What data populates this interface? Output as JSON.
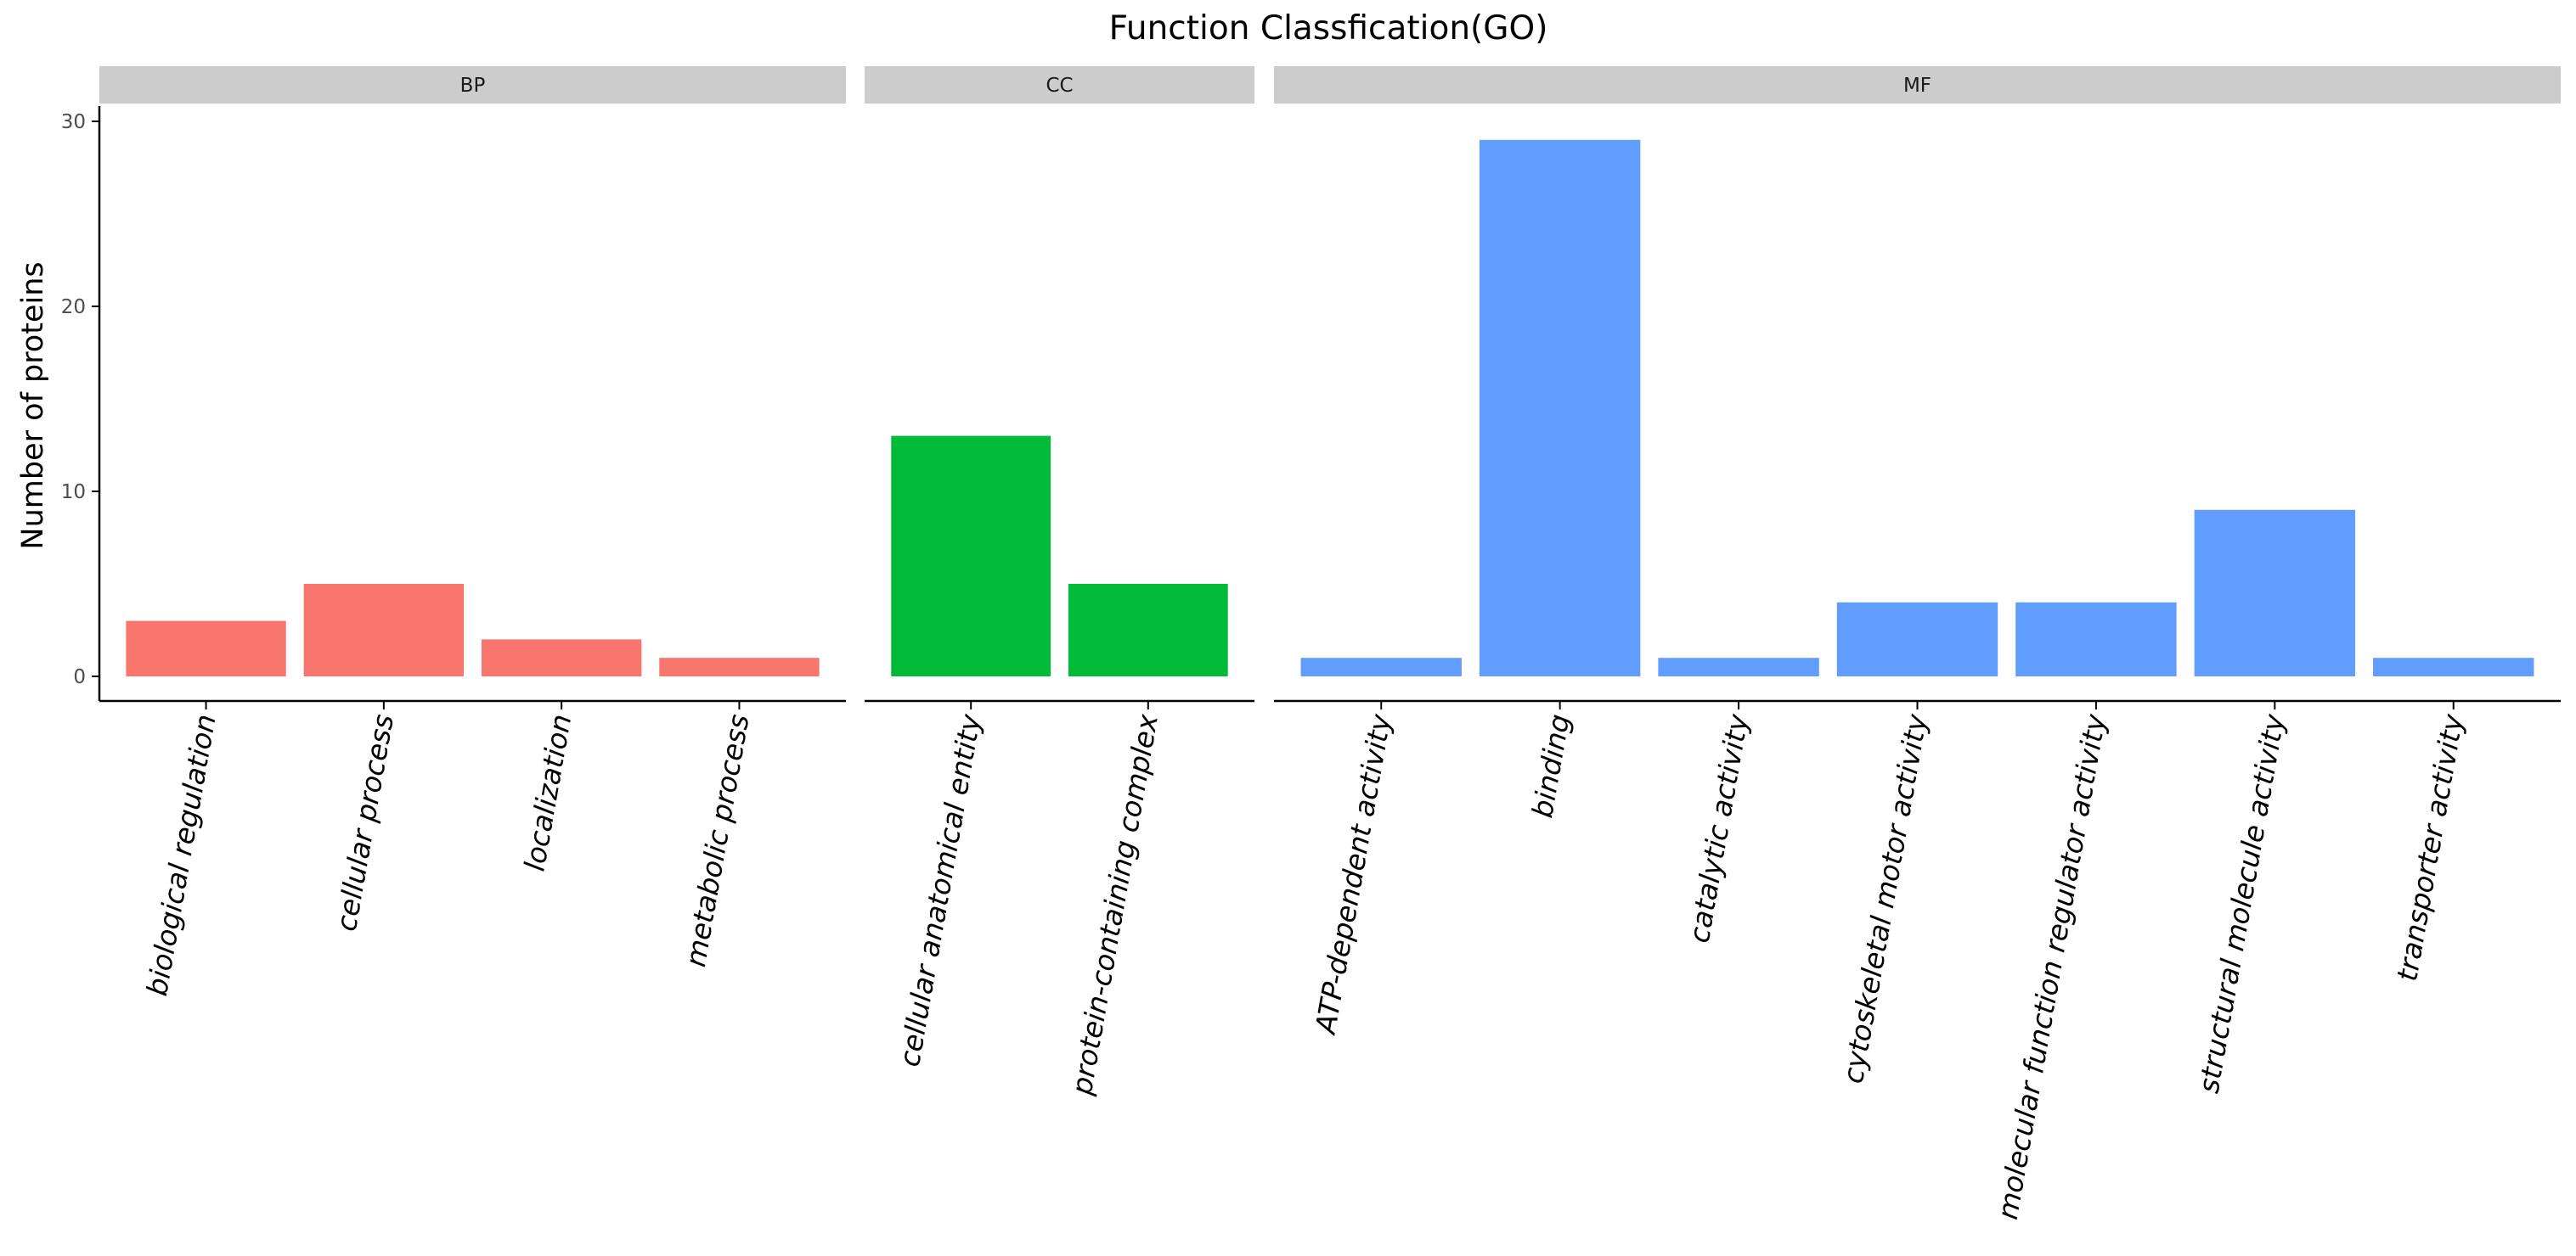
{
  "chart_data": {
    "type": "bar",
    "title": "Function Classfication(GO)",
    "xlabel": "",
    "ylabel": "Number of proteins",
    "ylim": [
      0,
      30
    ],
    "yticks": [
      0,
      10,
      20,
      30
    ],
    "grid": false,
    "legend": "none",
    "panels": [
      {
        "name": "BP",
        "color": "#F8766D",
        "categories": [
          "biological regulation",
          "cellular process",
          "localization",
          "metabolic process"
        ],
        "values": [
          3,
          5,
          2,
          1
        ]
      },
      {
        "name": "CC",
        "color": "#00BA38",
        "categories": [
          "cellular anatomical entity",
          "protein-containing complex"
        ],
        "values": [
          13,
          5
        ]
      },
      {
        "name": "MF",
        "color": "#619CFF",
        "categories": [
          "ATP-dependent activity",
          "binding",
          "catalytic activity",
          "cytoskeletal motor activity",
          "molecular function regulator activity",
          "structural molecule activity",
          "transporter activity"
        ],
        "values": [
          1,
          29,
          1,
          4,
          4,
          9,
          1
        ]
      }
    ]
  },
  "colors": {
    "strip_background": "#CCCCCC",
    "axis": "#000000"
  }
}
